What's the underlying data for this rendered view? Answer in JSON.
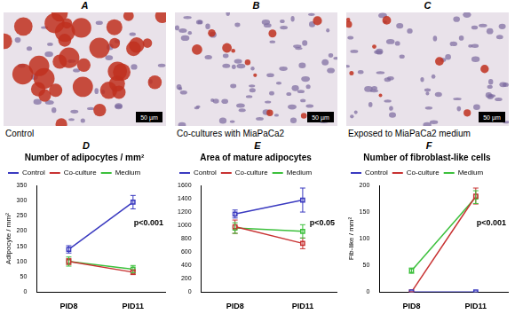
{
  "image_panels": [
    {
      "label": "A",
      "caption": "Control",
      "scale_bar": "50 µm"
    },
    {
      "label": "B",
      "caption": "Co-cultures with MiaPaCa2",
      "scale_bar": "50 µm"
    },
    {
      "label": "C",
      "caption": "Exposed to MiaPaCa2 medium",
      "scale_bar": "50 µm"
    }
  ],
  "chart_data": [
    {
      "label": "D",
      "type": "line",
      "title": "Number of adipocytes / mm²",
      "y_label": "Adipocyte / mm²",
      "categories": [
        "PID8",
        "PID11"
      ],
      "series": [
        {
          "name": "Control",
          "color": "#3a3ac0",
          "values": [
            140,
            295
          ],
          "errors": [
            12,
            22
          ]
        },
        {
          "name": "Co-culture",
          "color": "#c83232",
          "values": [
            100,
            65
          ],
          "errors": [
            10,
            8
          ]
        },
        {
          "name": "Medium",
          "color": "#3cc03c",
          "values": [
            100,
            75
          ],
          "errors": [
            15,
            12
          ]
        }
      ],
      "ylim": [
        0,
        350
      ],
      "yticks": [
        0,
        50,
        100,
        150,
        200,
        250,
        300,
        350
      ],
      "annotation": "p<0.001",
      "legend": "upper left",
      "marker": "square",
      "grid": false
    },
    {
      "label": "E",
      "type": "line",
      "title": "Area of mature adipocytes",
      "categories": [
        "PID8",
        "PID11"
      ],
      "series": [
        {
          "name": "Control",
          "color": "#3a3ac0",
          "values": [
            1170,
            1380
          ],
          "errors": [
            60,
            180
          ]
        },
        {
          "name": "Co-culture",
          "color": "#c83232",
          "values": [
            980,
            730
          ],
          "errors": [
            100,
            80
          ]
        },
        {
          "name": "Medium",
          "color": "#3cc03c",
          "values": [
            960,
            910
          ],
          "errors": [
            80,
            100
          ]
        }
      ],
      "ylim": [
        0,
        1600
      ],
      "yticks": [
        0,
        200,
        400,
        600,
        800,
        1000,
        1200,
        1400,
        1600
      ],
      "annotation": "p<0.05",
      "legend": "upper left",
      "marker": "square",
      "grid": false
    },
    {
      "label": "F",
      "type": "line",
      "title": "Number of fibroblast-like cells",
      "y_label": "Fib-like / mm²",
      "categories": [
        "PID8",
        "PID11"
      ],
      "series": [
        {
          "name": "Control",
          "color": "#3a3ac0",
          "values": [
            0,
            0
          ],
          "errors": [
            0,
            0
          ]
        },
        {
          "name": "Co-culture",
          "color": "#c83232",
          "values": [
            0,
            180
          ],
          "errors": [
            0,
            15
          ]
        },
        {
          "name": "Medium",
          "color": "#3cc03c",
          "values": [
            40,
            178
          ],
          "errors": [
            5,
            12
          ]
        }
      ],
      "ylim": [
        0,
        200
      ],
      "yticks": [
        0,
        50,
        100,
        150,
        200
      ],
      "annotation": "p<0.001",
      "legend": "upper left",
      "marker": "square",
      "grid": false
    }
  ]
}
